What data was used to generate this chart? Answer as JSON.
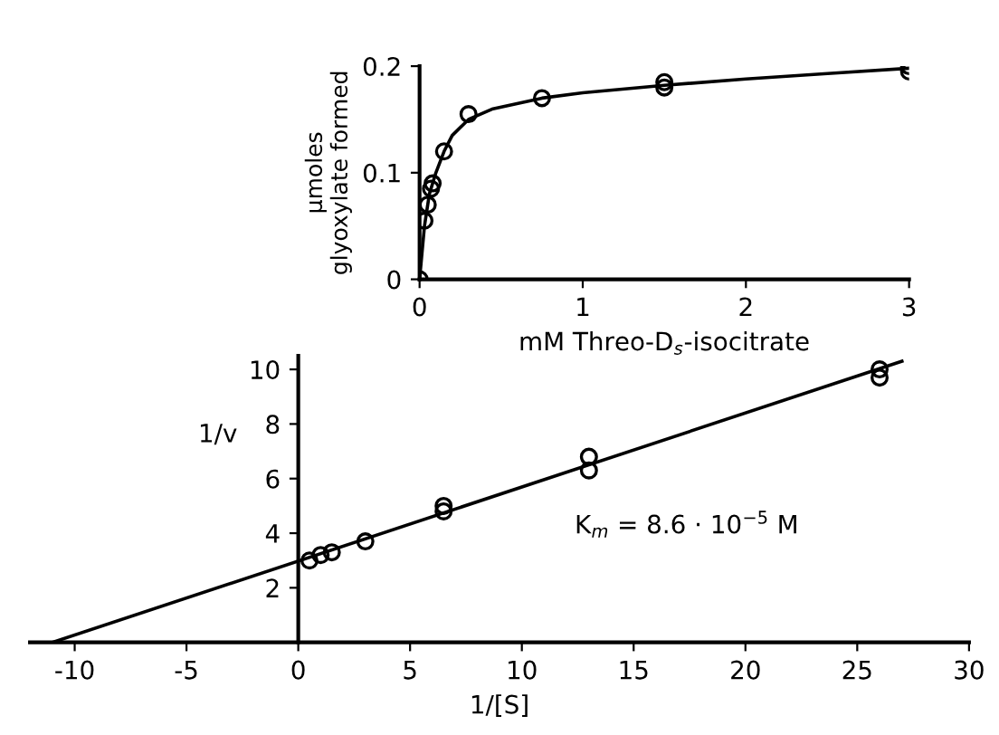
{
  "chart_data": [
    {
      "type": "scatter",
      "xlabel": "mM Threo-D$_{s}$-isocitrate",
      "ylabel": "μmoles\nglyoxylate formed",
      "xlim": [
        0,
        3
      ],
      "ylim": [
        0,
        0.2
      ],
      "xticks": [
        0,
        1,
        2,
        3
      ],
      "yticks": [
        0,
        0.1,
        0.2
      ],
      "grid": false,
      "legend": false,
      "marker": "circle",
      "series": [
        {
          "color": "#000000",
          "x": [
            0,
            0.03,
            0.05,
            0.07,
            0.08,
            0.15,
            0.3,
            0.75,
            1.5,
            1.5,
            3,
            3
          ],
          "values": [
            0,
            0.055,
            0.07,
            0.085,
            0.09,
            0.12,
            0.155,
            0.17,
            0.18,
            0.185,
            0.195,
            0.2
          ]
        },
        {
          "type": "line",
          "color": "#000000",
          "marker": "none",
          "x": [
            0,
            0.03,
            0.06,
            0.1,
            0.15,
            0.2,
            0.3,
            0.45,
            0.75,
            1.0,
            1.5,
            2.0,
            2.5,
            3
          ],
          "values": [
            0,
            0.05,
            0.08,
            0.1,
            0.12,
            0.135,
            0.15,
            0.16,
            0.17,
            0.175,
            0.182,
            0.188,
            0.193,
            0.198
          ]
        }
      ]
    },
    {
      "type": "scatter",
      "xlabel": "1/[S]",
      "ylabel": "1/v",
      "xlim": [
        -12,
        30
      ],
      "ylim": [
        0,
        10.5
      ],
      "xticks": [
        -10,
        -5,
        0,
        5,
        10,
        15,
        20,
        25,
        30
      ],
      "yticks": [
        2,
        4,
        6,
        8,
        10
      ],
      "grid": false,
      "legend": false,
      "marker": "circle",
      "annotations": [
        "K$_{m}$ = 8.6 · 10$^{−5}$ M"
      ],
      "series": [
        {
          "color": "#000000",
          "x": [
            0.5,
            1,
            1.5,
            3,
            6.5,
            6.5,
            13,
            13,
            26,
            26
          ],
          "values": [
            3.0,
            3.2,
            3.3,
            3.7,
            4.8,
            5.0,
            6.3,
            6.8,
            9.7,
            10.0
          ]
        },
        {
          "type": "line",
          "color": "#000000",
          "marker": "none",
          "x": [
            -11,
            27
          ],
          "values": [
            0,
            10.3
          ]
        }
      ]
    }
  ]
}
